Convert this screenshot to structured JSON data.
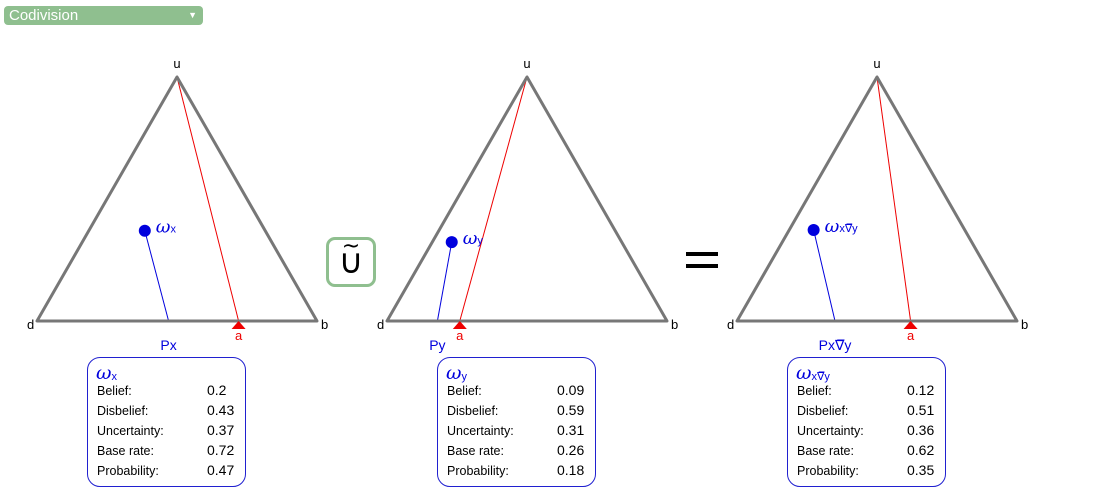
{
  "operator_select": {
    "value": "Codivision"
  },
  "operator_symbol": "⨃̃",
  "operator_display": "∪",
  "equals_sign": "=",
  "vertex_labels": {
    "u": "u",
    "d": "d",
    "b": "b",
    "a": "a"
  },
  "triangles": [
    {
      "omega": "ω",
      "sub": "x",
      "proj_label": "Px",
      "belief": 0.2,
      "disbelief": 0.43,
      "uncertainty": 0.37,
      "base_rate": 0.72,
      "probability": 0.47
    },
    {
      "omega": "ω",
      "sub": "y",
      "proj_label": "Py",
      "belief": 0.09,
      "disbelief": 0.59,
      "uncertainty": 0.31,
      "base_rate": 0.26,
      "probability": 0.18
    },
    {
      "omega": "ω",
      "sub": "x∇̅y",
      "proj_label": "Px∇̅y",
      "belief": 0.12,
      "disbelief": 0.51,
      "uncertainty": 0.36,
      "base_rate": 0.62,
      "probability": 0.35
    }
  ],
  "panels": [
    {
      "omega": "ω",
      "sub": "x",
      "rows": [
        {
          "label": "Belief:",
          "value": "0.2"
        },
        {
          "label": "Disbelief:",
          "value": "0.43"
        },
        {
          "label": "Uncertainty:",
          "value": "0.37"
        },
        {
          "label": "Base rate:",
          "value": "0.72"
        },
        {
          "label": "Probability:",
          "value": "0.47"
        }
      ]
    },
    {
      "omega": "ω",
      "sub": "y",
      "rows": [
        {
          "label": "Belief:",
          "value": "0.09"
        },
        {
          "label": "Disbelief:",
          "value": "0.59"
        },
        {
          "label": "Uncertainty:",
          "value": "0.31"
        },
        {
          "label": "Base rate:",
          "value": "0.26"
        },
        {
          "label": "Probability:",
          "value": "0.18"
        }
      ]
    },
    {
      "omega": "ω",
      "sub": "x∇̅y",
      "rows": [
        {
          "label": "Belief:",
          "value": "0.12"
        },
        {
          "label": "Disbelief:",
          "value": "0.51"
        },
        {
          "label": "Uncertainty:",
          "value": "0.36"
        },
        {
          "label": "Base rate:",
          "value": "0.62"
        },
        {
          "label": "Probability:",
          "value": "0.35"
        }
      ]
    }
  ],
  "colors": {
    "triangle": "#777777",
    "opinion": "#0000dd",
    "base_rate": "#ee0000",
    "accent": "#8fbf8f"
  }
}
